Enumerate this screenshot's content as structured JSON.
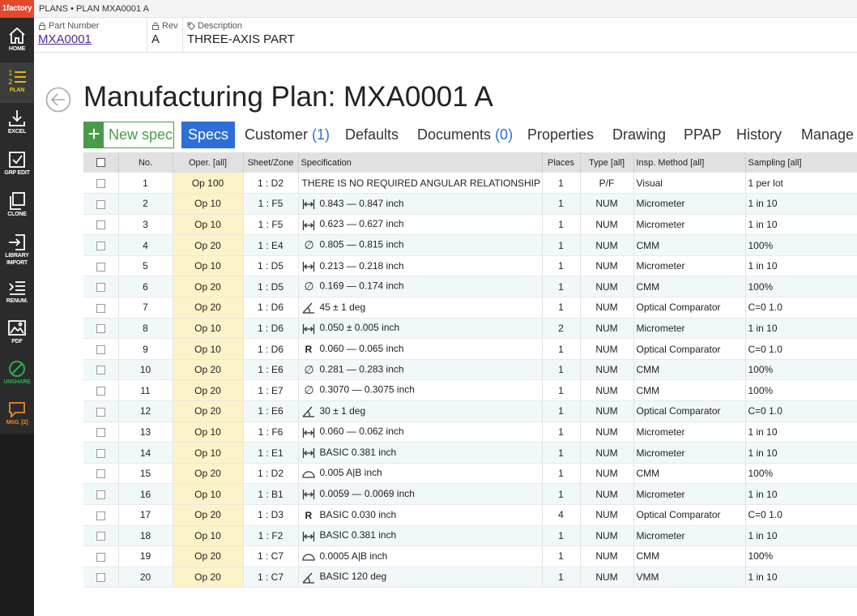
{
  "brand": "1factory",
  "breadcrumb": "PLANS • PLAN MXA0001 A",
  "sidebar": {
    "items": [
      {
        "label": "HOME"
      },
      {
        "label": "PLAN"
      },
      {
        "label": "EXCEL"
      },
      {
        "label": "GRP EDIT"
      },
      {
        "label": "CLONE"
      },
      {
        "label": "LIBRARY"
      },
      {
        "label": "IMPORT"
      },
      {
        "label": "RENUM."
      },
      {
        "label": "PDF"
      },
      {
        "label": "UNSHARE"
      },
      {
        "label": "MSG. [2]"
      }
    ]
  },
  "part": {
    "number_label": "Part Number",
    "number": "MXA0001",
    "rev_label": "Rev",
    "rev": "A",
    "desc_label": "Description",
    "desc": "THREE-AXIS PART"
  },
  "title": "Manufacturing Plan: MXA0001 A",
  "tabs": {
    "new_spec": "New spec",
    "specs": "Specs",
    "customer": "Customer",
    "customer_count": "(1)",
    "defaults": "Defaults",
    "documents": "Documents",
    "documents_count": "(0)",
    "properties": "Properties",
    "drawing": "Drawing",
    "ppap": "PPAP",
    "history": "History",
    "manage": "Manage"
  },
  "columns": {
    "no": "No.",
    "oper": "Oper. [all]",
    "sheet": "Sheet/Zone",
    "spec": "Specification",
    "places": "Places",
    "type": "Type [all]",
    "insp": "Insp. Method [all]",
    "sampling": "Sampling [all]"
  },
  "colors": {
    "accent": "#2d6fd6",
    "new_spec": "#4a9a4a",
    "op_bg": "#fdf3c8",
    "brand": "#e4472c"
  },
  "rows": [
    {
      "no": "1",
      "op": "Op 100",
      "zone": "1 : D2",
      "sym": "none",
      "spec": "THERE IS NO REQUIRED ANGULAR RELATIONSHIP ...",
      "places": "1",
      "type": "P/F",
      "insp": "Visual",
      "sampling": "1 per lot"
    },
    {
      "no": "2",
      "op": "Op 10",
      "zone": "1 : F5",
      "sym": "linear",
      "spec": "0.843 — 0.847  inch",
      "places": "1",
      "type": "NUM",
      "insp": "Micrometer",
      "sampling": "1 in 10"
    },
    {
      "no": "3",
      "op": "Op 10",
      "zone": "1 : F5",
      "sym": "linear",
      "spec": "0.623 — 0.627  inch",
      "places": "1",
      "type": "NUM",
      "insp": "Micrometer",
      "sampling": "1 in 10"
    },
    {
      "no": "4",
      "op": "Op 20",
      "zone": "1 : E4",
      "sym": "diameter",
      "spec": "0.805 — 0.815  inch",
      "places": "1",
      "type": "NUM",
      "insp": "CMM",
      "sampling": "100%"
    },
    {
      "no": "5",
      "op": "Op 10",
      "zone": "1 : D5",
      "sym": "linear",
      "spec": "0.213 — 0.218  inch",
      "places": "1",
      "type": "NUM",
      "insp": "Micrometer",
      "sampling": "1 in 10"
    },
    {
      "no": "6",
      "op": "Op 20",
      "zone": "1 : D5",
      "sym": "diameter",
      "spec": "0.169 — 0.174  inch",
      "places": "1",
      "type": "NUM",
      "insp": "CMM",
      "sampling": "100%"
    },
    {
      "no": "7",
      "op": "Op 20",
      "zone": "1 : D6",
      "sym": "angle",
      "spec": "45 ± 1  deg",
      "places": "1",
      "type": "NUM",
      "insp": "Optical Comparator",
      "sampling": "C=0 1.0"
    },
    {
      "no": "8",
      "op": "Op 10",
      "zone": "1 : D6",
      "sym": "linear",
      "spec": "0.050 ± 0.005  inch",
      "places": "2",
      "type": "NUM",
      "insp": "Micrometer",
      "sampling": "1 in 10"
    },
    {
      "no": "9",
      "op": "Op 10",
      "zone": "1 : D6",
      "sym": "radius",
      "spec": "0.060 — 0.065  inch",
      "places": "1",
      "type": "NUM",
      "insp": "Optical Comparator",
      "sampling": "C=0 1.0"
    },
    {
      "no": "10",
      "op": "Op 20",
      "zone": "1 : E6",
      "sym": "diameter",
      "spec": "0.281 — 0.283  inch",
      "places": "1",
      "type": "NUM",
      "insp": "CMM",
      "sampling": "100%"
    },
    {
      "no": "11",
      "op": "Op 20",
      "zone": "1 : E7",
      "sym": "diameter",
      "spec": "0.3070 — 0.3075  inch",
      "places": "1",
      "type": "NUM",
      "insp": "CMM",
      "sampling": "100%"
    },
    {
      "no": "12",
      "op": "Op 20",
      "zone": "1 : E6",
      "sym": "angle",
      "spec": "30 ± 1  deg",
      "places": "1",
      "type": "NUM",
      "insp": "Optical Comparator",
      "sampling": "C=0 1.0"
    },
    {
      "no": "13",
      "op": "Op 10",
      "zone": "1 : F6",
      "sym": "linear",
      "spec": "0.060 — 0.062  inch",
      "places": "1",
      "type": "NUM",
      "insp": "Micrometer",
      "sampling": "1 in 10"
    },
    {
      "no": "14",
      "op": "Op 10",
      "zone": "1 : E1",
      "sym": "linear",
      "spec": "BASIC 0.381  inch",
      "places": "1",
      "type": "NUM",
      "insp": "Micrometer",
      "sampling": "1 in 10"
    },
    {
      "no": "15",
      "op": "Op 20",
      "zone": "1 : D2",
      "sym": "profile",
      "spec": "0.005 A|B  inch",
      "places": "1",
      "type": "NUM",
      "insp": "CMM",
      "sampling": "100%"
    },
    {
      "no": "16",
      "op": "Op 10",
      "zone": "1 : B1",
      "sym": "linear",
      "spec": "0.0059 — 0.0069  inch",
      "places": "1",
      "type": "NUM",
      "insp": "Micrometer",
      "sampling": "1 in 10"
    },
    {
      "no": "17",
      "op": "Op 20",
      "zone": "1 : D3",
      "sym": "radius",
      "spec": "BASIC 0.030  inch",
      "places": "4",
      "type": "NUM",
      "insp": "Optical Comparator",
      "sampling": "C=0 1.0"
    },
    {
      "no": "18",
      "op": "Op 10",
      "zone": "1 : F2",
      "sym": "linear",
      "spec": "BASIC 0.381  inch",
      "places": "1",
      "type": "NUM",
      "insp": "Micrometer",
      "sampling": "1 in 10"
    },
    {
      "no": "19",
      "op": "Op 20",
      "zone": "1 : C7",
      "sym": "profile",
      "spec": "0.0005 A|B  inch",
      "places": "1",
      "type": "NUM",
      "insp": "CMM",
      "sampling": "100%"
    },
    {
      "no": "20",
      "op": "Op 20",
      "zone": "1 : C7",
      "sym": "angle",
      "spec": "BASIC 120  deg",
      "places": "1",
      "type": "NUM",
      "insp": "VMM",
      "sampling": "1 in 10"
    }
  ]
}
